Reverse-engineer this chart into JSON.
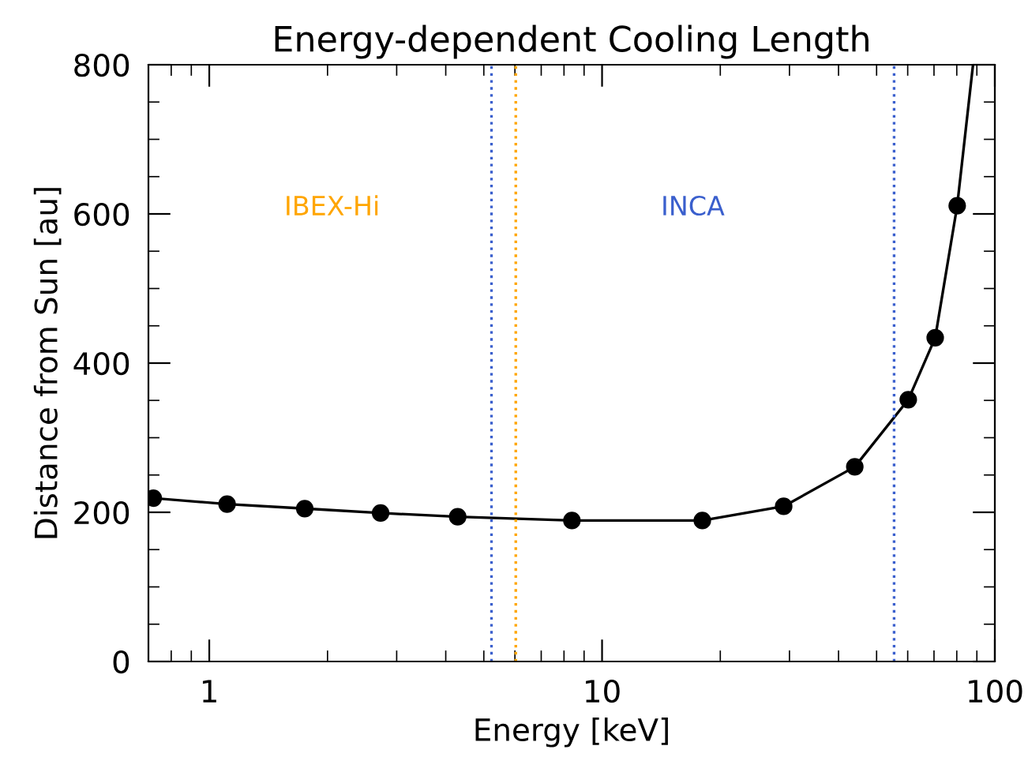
{
  "chart_data": {
    "type": "line",
    "title": "Energy-dependent Cooling Length",
    "xlabel": "Energy [keV]",
    "ylabel": "Distance from Sun [au]",
    "log": "x",
    "xlim": [
      0.7,
      100
    ],
    "xticks": [
      1,
      10,
      100
    ],
    "ylim": [
      0,
      800
    ],
    "yticks": [
      0,
      200,
      400,
      600,
      800
    ],
    "grid": false,
    "legend": false,
    "series": [
      {
        "color": "#000000",
        "marker": "circle",
        "x": [
          0.72,
          1.11,
          1.75,
          2.73,
          4.29,
          8.38,
          18.0,
          29.0,
          44.0,
          60.2,
          70.5,
          80.2
        ],
        "values": [
          219,
          211,
          205,
          199,
          194,
          189,
          189,
          208,
          261,
          351,
          434,
          611
        ]
      },
      {
        "color": "#000000",
        "marker": "none",
        "x": [
          80.2,
          88
        ],
        "values": [
          611,
          800
        ]
      }
    ],
    "ref_lines": [
      {
        "axis": "x",
        "value": 5.23,
        "color": "#3a5fcd",
        "line_style": "dotted",
        "label": "INCA"
      },
      {
        "axis": "x",
        "value": 6.03,
        "color": "#ffa500",
        "line_style": "dotted",
        "label": "IBEX-Hi"
      },
      {
        "axis": "x",
        "value": 55.4,
        "color": "#3a5fcd",
        "line_style": "dotted"
      }
    ]
  }
}
